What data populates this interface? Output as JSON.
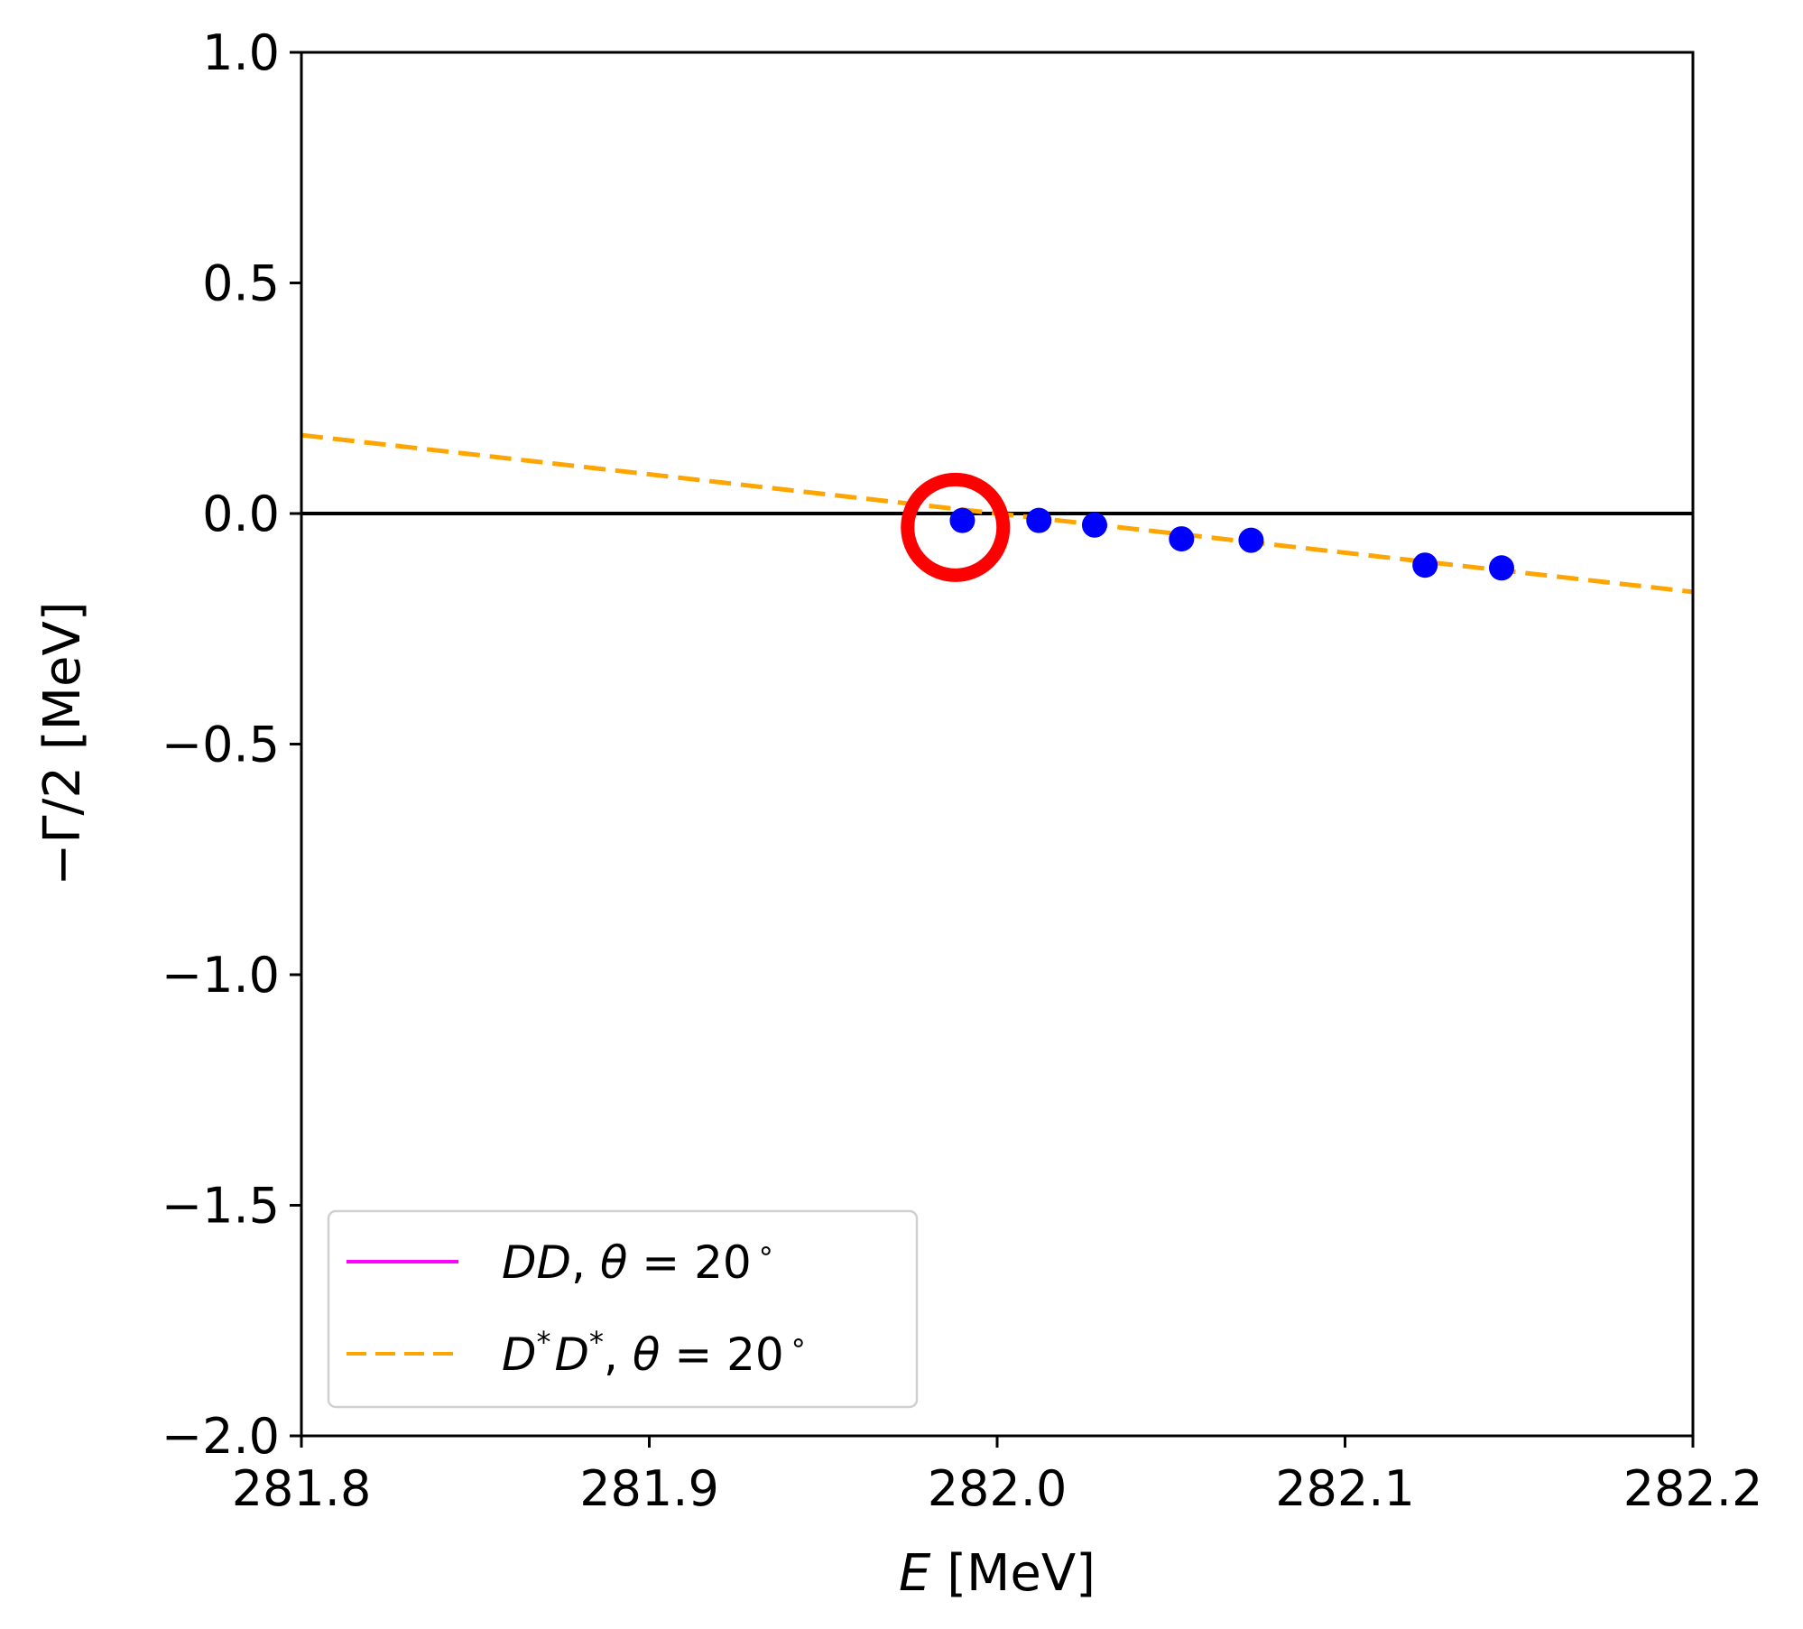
{
  "chart_data": {
    "type": "scatter",
    "xlabel_symbol": "E",
    "xlabel_unit": " [MeV]",
    "ylabel": "−Γ/2 [MeV]",
    "xlim": [
      281.8,
      282.2
    ],
    "ylim": [
      -2.0,
      1.0
    ],
    "x_ticks": [
      281.8,
      281.9,
      282.0,
      282.1,
      282.2
    ],
    "x_tick_labels": [
      "281.8",
      "281.9",
      "282.0",
      "282.1",
      "282.2"
    ],
    "y_ticks": [
      1.0,
      0.5,
      0.0,
      -0.5,
      -1.0,
      -1.5,
      -2.0
    ],
    "y_tick_labels": [
      "1.0",
      "0.5",
      "0.0",
      "−0.5",
      "−1.0",
      "−1.5",
      "−2.0"
    ],
    "grid": false,
    "reference_line": {
      "y": 0.0,
      "color": "#000000"
    },
    "points": {
      "color": "#0000ff",
      "x": [
        281.99,
        282.012,
        282.028,
        282.053,
        282.073,
        282.123,
        282.145
      ],
      "y": [
        -0.015,
        -0.015,
        -0.025,
        -0.055,
        -0.058,
        -0.112,
        -0.118
      ]
    },
    "series": [
      {
        "name_parts": [
          "DD",
          ", ",
          "θ",
          " = 20",
          "∘"
        ],
        "style": "solid",
        "color": "#ff00ff",
        "x": [],
        "y": []
      },
      {
        "name_parts": [
          "D",
          "*",
          "D",
          "*",
          ", ",
          "θ",
          " = 20",
          "∘"
        ],
        "style": "dashed",
        "color": "#ffa500",
        "x": [
          281.8,
          282.2
        ],
        "y": [
          0.17,
          -0.17
        ]
      }
    ],
    "highlight": {
      "x": 281.988,
      "y": -0.03,
      "color": "#ff0000"
    },
    "legend_position": "lower-left"
  }
}
